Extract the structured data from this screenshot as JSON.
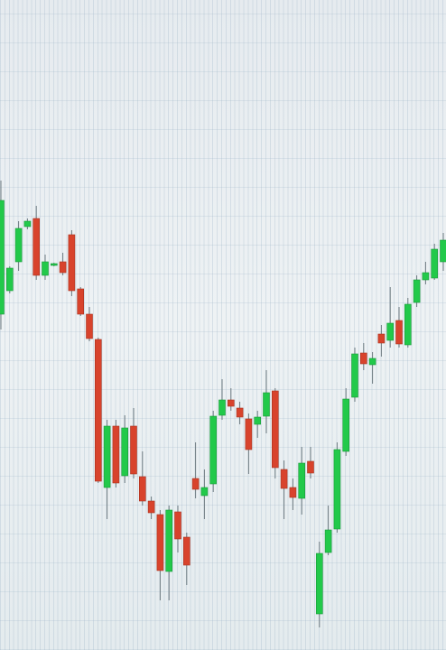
{
  "chart_data": {
    "type": "candlestick",
    "open": [
      372,
      398,
      430,
      469,
      478,
      415,
      426,
      430,
      460,
      400,
      372,
      344,
      180,
      248,
      193,
      248,
      192,
      165,
      150,
      87,
      153,
      125,
      190,
      171,
      184,
      260,
      277,
      268,
      256,
      250,
      259,
      287,
      200,
      180,
      168,
      209,
      40,
      108,
      134,
      220,
      280,
      329,
      316,
      350,
      343,
      365,
      338,
      385,
      410,
      412,
      430
    ],
    "high": [
      520,
      425,
      475,
      478,
      492,
      438,
      429,
      440,
      465,
      402,
      380,
      346,
      255,
      255,
      260,
      268,
      220,
      170,
      155,
      160,
      160,
      130,
      230,
      200,
      265,
      300,
      290,
      275,
      262,
      265,
      310,
      290,
      210,
      190,
      225,
      225,
      120,
      160,
      230,
      290,
      335,
      340,
      330,
      360,
      402,
      380,
      390,
      415,
      430,
      450,
      462
    ],
    "low": [
      355,
      395,
      420,
      466,
      410,
      410,
      425,
      415,
      392,
      370,
      342,
      185,
      145,
      180,
      185,
      190,
      160,
      145,
      55,
      55,
      108,
      72,
      168,
      145,
      175,
      255,
      265,
      250,
      195,
      235,
      240,
      190,
      145,
      155,
      150,
      190,
      25,
      105,
      130,
      215,
      275,
      310,
      295,
      325,
      335,
      335,
      335,
      380,
      405,
      410,
      420
    ],
    "close": [
      498,
      423,
      467,
      475,
      415,
      430,
      428,
      418,
      398,
      372,
      345,
      187,
      248,
      185,
      246,
      195,
      165,
      152,
      88,
      155,
      123,
      94,
      178,
      180,
      259,
      277,
      270,
      258,
      222,
      258,
      285,
      202,
      179,
      169,
      207,
      196,
      107,
      133,
      222,
      278,
      328,
      317,
      323,
      340,
      362,
      339,
      383,
      410,
      418,
      444,
      454
    ],
    "up_color": "#22c94a",
    "down_color": "#d8432c",
    "ylim": [
      0,
      720
    ]
  }
}
